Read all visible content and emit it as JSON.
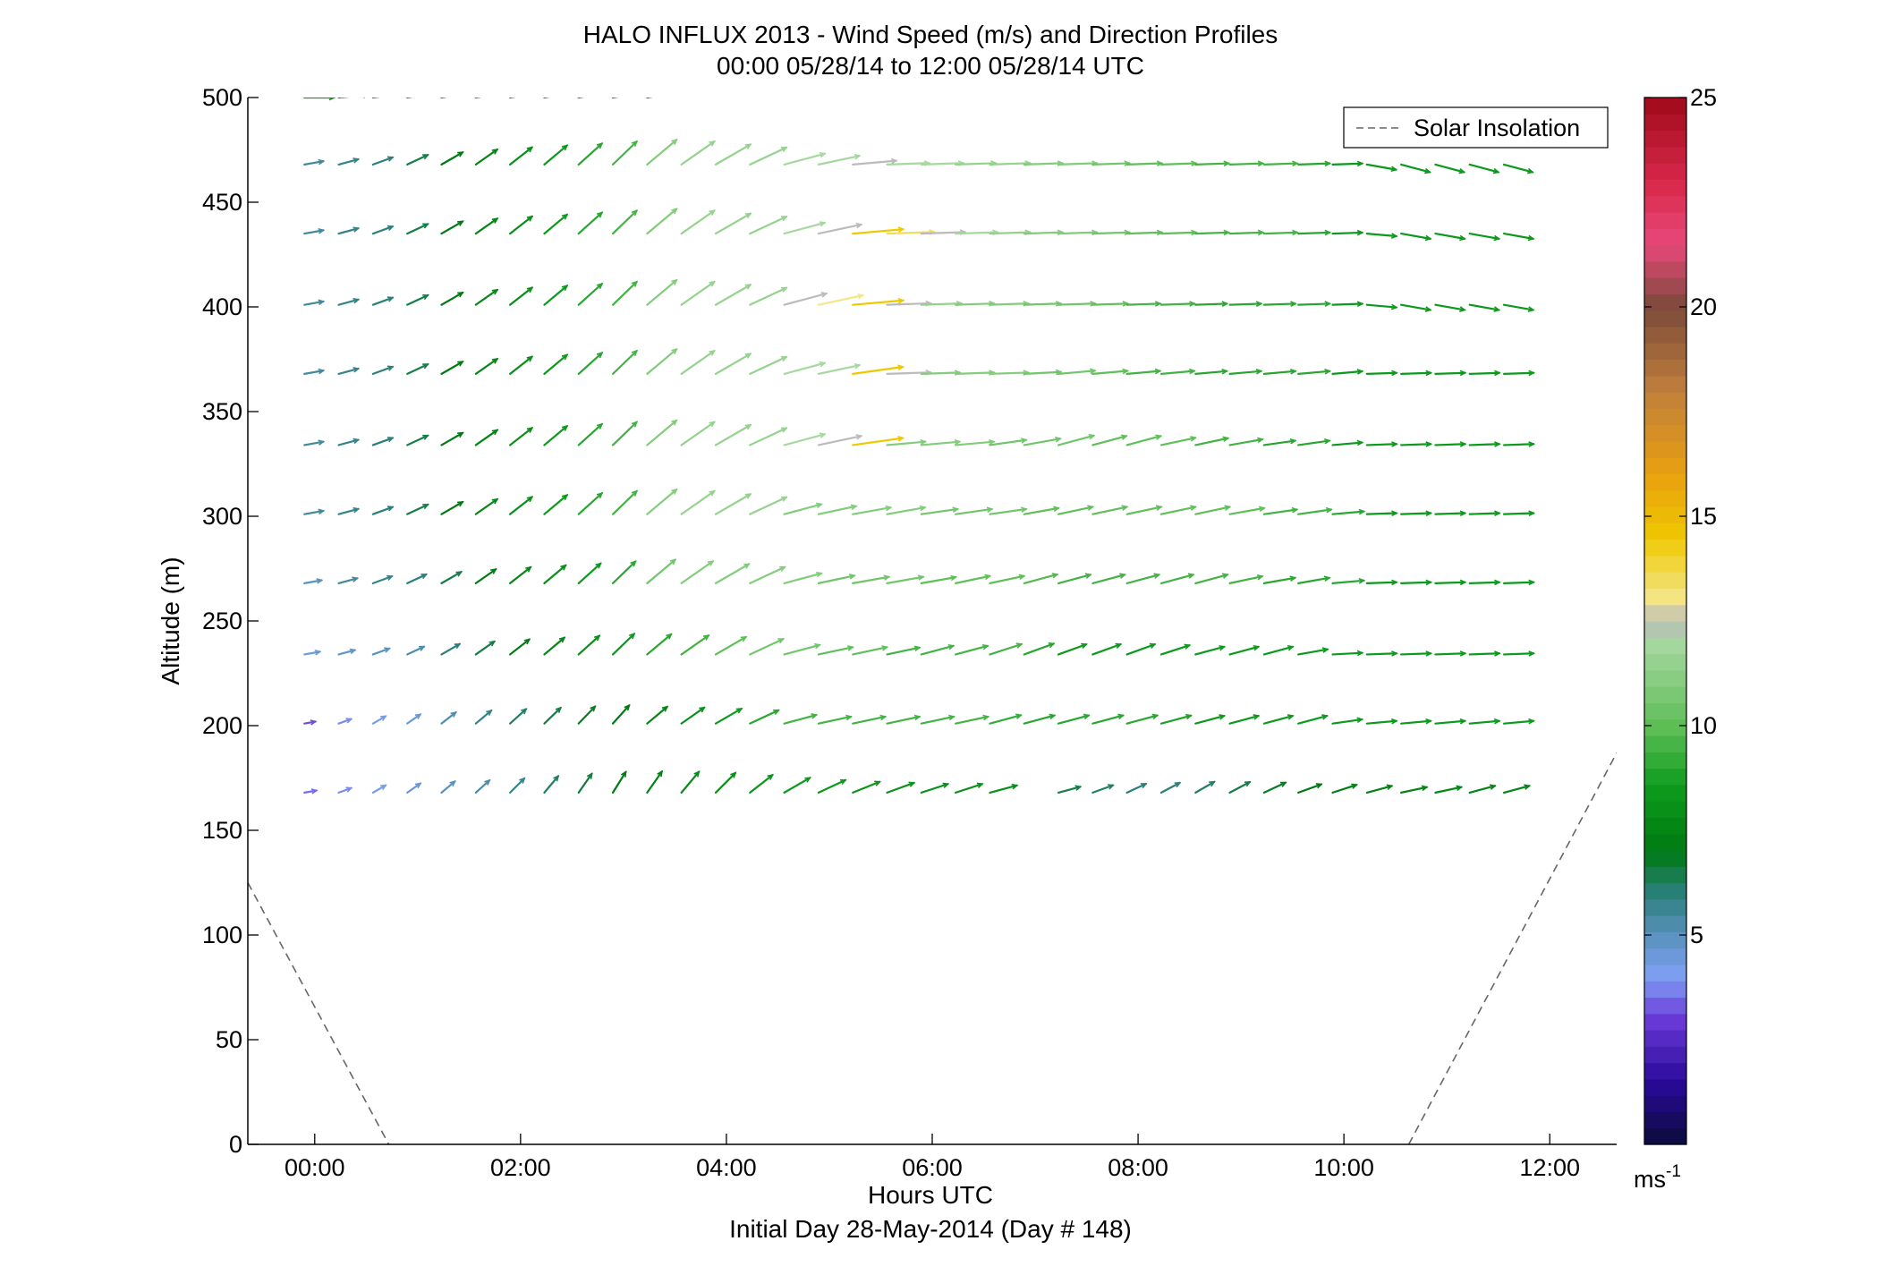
{
  "chart_data": {
    "type": "quiver",
    "title": "HALO INFLUX 2013 - Wind Speed (m/s) and Direction Profiles",
    "subtitle": "00:00 05/28/14 to 12:00 05/28/14  UTC",
    "xlabel": "Hours UTC",
    "xlabel2": "Initial Day 28-May-2014 (Day # 148)",
    "ylabel": "Altitude (m)",
    "xlim": [
      -0.65,
      12.65
    ],
    "ylim": [
      0,
      500
    ],
    "x_tick_values": [
      0,
      2,
      4,
      6,
      8,
      10,
      12
    ],
    "x_tick_labels": [
      "00:00",
      "02:00",
      "04:00",
      "06:00",
      "08:00",
      "10:00",
      "12:00"
    ],
    "y_tick_values": [
      0,
      50,
      100,
      150,
      200,
      250,
      300,
      350,
      400,
      450,
      500
    ],
    "y_tick_labels": [
      "0",
      "50",
      "100",
      "150",
      "200",
      "250",
      "300",
      "350",
      "400",
      "450",
      "500"
    ],
    "grid": false,
    "legend": {
      "position": "top-right",
      "entries": [
        {
          "label": "Solar Insolation",
          "style": "dashed",
          "color": "#666666"
        }
      ]
    },
    "colorbar": {
      "range": [
        0,
        25
      ],
      "tick_values": [
        5,
        10,
        15,
        20,
        25
      ],
      "tick_labels": [
        "5",
        "10",
        "15",
        "20",
        "25"
      ],
      "unit_base": "ms",
      "unit_exp": "-1",
      "stops": [
        {
          "v": 0,
          "c": "#0b0b3a"
        },
        {
          "v": 1.5,
          "c": "#2a0a9a"
        },
        {
          "v": 3,
          "c": "#6a3ad8"
        },
        {
          "v": 4,
          "c": "#7f9ff5"
        },
        {
          "v": 5,
          "c": "#5a92be"
        },
        {
          "v": 6,
          "c": "#2a7f7a"
        },
        {
          "v": 7,
          "c": "#007a12"
        },
        {
          "v": 8.5,
          "c": "#0c9a1c"
        },
        {
          "v": 10,
          "c": "#5fbf58"
        },
        {
          "v": 12,
          "c": "#a7d8a0"
        },
        {
          "v": 12.5,
          "c": "#bbbbbb"
        },
        {
          "v": 13,
          "c": "#f4e68a"
        },
        {
          "v": 14.5,
          "c": "#efc800"
        },
        {
          "v": 16,
          "c": "#e8a010"
        },
        {
          "v": 18,
          "c": "#c07f3c"
        },
        {
          "v": 20,
          "c": "#7b4a3a"
        },
        {
          "v": 21.5,
          "c": "#e8487a"
        },
        {
          "v": 23,
          "c": "#d8284a"
        },
        {
          "v": 25,
          "c": "#a00a1a"
        }
      ]
    },
    "solar_insolation": [
      {
        "x": [
          -0.65,
          0.72
        ],
        "y": [
          125,
          0
        ]
      },
      {
        "x": [
          10.63,
          12.65
        ],
        "y": [
          0,
          187
        ]
      }
    ],
    "altitudes": [
      168,
      201,
      234,
      268,
      301,
      334,
      368,
      401,
      435,
      468,
      500
    ],
    "times_start": -0.1,
    "times_step": 0.333,
    "times_count": 36,
    "wind_rows": [
      {
        "alt": 168,
        "s": [
          3.5,
          3.8,
          4.2,
          4.6,
          5.0,
          5.3,
          5.8,
          6.2,
          6.6,
          7.0,
          7.4,
          7.8,
          8.0,
          8.2,
          8.5,
          8.5,
          8.3,
          8.2,
          8.0,
          8.0,
          8.0,
          null,
          6.5,
          6.2,
          6.0,
          6.0,
          6.2,
          6.5,
          6.8,
          7.0,
          7.2,
          7.4,
          7.5,
          7.6,
          7.5,
          7.5
        ],
        "d": [
          10,
          20,
          30,
          35,
          40,
          42,
          45,
          50,
          55,
          58,
          55,
          50,
          45,
          38,
          30,
          25,
          22,
          20,
          18,
          18,
          15,
          null,
          15,
          20,
          25,
          28,
          30,
          28,
          25,
          20,
          18,
          15,
          12,
          12,
          15,
          15
        ]
      },
      {
        "alt": 201,
        "s": [
          3.2,
          3.8,
          4.2,
          4.6,
          5.2,
          5.8,
          6.2,
          6.5,
          6.8,
          7.0,
          7.5,
          8.0,
          8.5,
          9.0,
          9.5,
          9.5,
          9.5,
          9.5,
          9.5,
          9.5,
          9.2,
          9.0,
          9.0,
          9.0,
          9.0,
          8.8,
          8.5,
          8.5,
          8.5,
          8.5,
          8.5,
          8.5,
          8.5,
          8.5,
          8.5,
          8.5
        ],
        "d": [
          10,
          20,
          30,
          35,
          38,
          40,
          42,
          44,
          46,
          48,
          40,
          35,
          30,
          25,
          15,
          12,
          12,
          12,
          12,
          12,
          15,
          15,
          15,
          15,
          15,
          15,
          15,
          15,
          15,
          15,
          8,
          5,
          5,
          5,
          5,
          5
        ]
      },
      {
        "alt": 234,
        "s": [
          4.5,
          4.8,
          5.0,
          5.3,
          6.0,
          6.5,
          7.0,
          7.5,
          8.0,
          8.5,
          9.0,
          9.5,
          10.0,
          10.5,
          10.5,
          10.0,
          10.0,
          9.5,
          9.5,
          9.5,
          9.5,
          9.0,
          8.5,
          8.5,
          8.5,
          8.5,
          8.5,
          8.5,
          8.5,
          8.5,
          8.5,
          8.5,
          8.5,
          8.5,
          8.5,
          8.5
        ],
        "d": [
          10,
          15,
          20,
          25,
          30,
          35,
          38,
          40,
          42,
          44,
          40,
          35,
          30,
          25,
          15,
          12,
          12,
          12,
          15,
          15,
          18,
          20,
          20,
          20,
          20,
          18,
          15,
          15,
          15,
          10,
          3,
          2,
          2,
          2,
          2,
          2
        ]
      },
      {
        "alt": 268,
        "s": [
          5.0,
          5.5,
          5.8,
          6.0,
          6.5,
          7.0,
          7.5,
          8.0,
          8.5,
          9.0,
          10.5,
          11.0,
          11.0,
          11.0,
          11.0,
          10.5,
          10.5,
          10.5,
          10.0,
          10.0,
          10.0,
          9.8,
          9.5,
          9.5,
          9.5,
          9.5,
          9.5,
          9.5,
          9.0,
          9.0,
          9.0,
          8.5,
          8.5,
          8.5,
          8.5,
          8.5
        ],
        "d": [
          10,
          15,
          20,
          25,
          30,
          35,
          38,
          40,
          42,
          44,
          40,
          35,
          30,
          25,
          15,
          12,
          10,
          10,
          10,
          12,
          12,
          15,
          15,
          15,
          15,
          15,
          15,
          12,
          10,
          10,
          5,
          2,
          2,
          2,
          2,
          2
        ]
      },
      {
        "alt": 301,
        "s": [
          5.5,
          5.8,
          6.0,
          6.5,
          7.0,
          7.5,
          8.0,
          8.5,
          9.0,
          9.5,
          11.0,
          11.5,
          11.5,
          11.5,
          11.0,
          11.0,
          11.0,
          11.0,
          10.5,
          10.5,
          10.5,
          10.0,
          10.0,
          10.0,
          10.0,
          10.0,
          10.0,
          10.0,
          9.5,
          9.5,
          9.0,
          8.5,
          8.5,
          8.5,
          8.5,
          8.5
        ],
        "d": [
          10,
          15,
          20,
          25,
          30,
          35,
          38,
          40,
          42,
          44,
          40,
          35,
          30,
          25,
          15,
          12,
          10,
          10,
          8,
          8,
          8,
          10,
          12,
          12,
          12,
          12,
          12,
          10,
          8,
          8,
          5,
          2,
          2,
          2,
          2,
          2
        ]
      },
      {
        "alt": 334,
        "s": [
          5.5,
          5.8,
          6.0,
          6.5,
          7.0,
          7.5,
          8.0,
          8.5,
          9.0,
          9.5,
          11.0,
          11.5,
          11.5,
          11.5,
          12.0,
          12.5,
          14.5,
          11.0,
          11.0,
          11.0,
          10.5,
          10.5,
          10.5,
          10.0,
          10.0,
          10.0,
          9.5,
          9.5,
          9.0,
          9.0,
          8.5,
          8.5,
          8.5,
          8.5,
          8.5,
          8.5
        ],
        "d": [
          10,
          15,
          20,
          25,
          30,
          35,
          38,
          40,
          42,
          44,
          40,
          35,
          30,
          25,
          15,
          12,
          8,
          5,
          5,
          5,
          8,
          10,
          15,
          15,
          15,
          12,
          12,
          10,
          8,
          8,
          5,
          2,
          2,
          2,
          2,
          2
        ]
      },
      {
        "alt": 368,
        "s": [
          5.5,
          5.8,
          6.0,
          6.5,
          7.0,
          7.5,
          8.0,
          8.5,
          9.0,
          9.5,
          11.0,
          11.5,
          11.5,
          11.5,
          12.0,
          12.0,
          14.5,
          12.5,
          11.0,
          11.0,
          11.0,
          10.5,
          10.5,
          10.0,
          9.5,
          9.5,
          9.0,
          9.0,
          9.0,
          9.0,
          8.5,
          8.5,
          8.5,
          8.5,
          8.5,
          8.5
        ],
        "d": [
          10,
          15,
          20,
          25,
          30,
          35,
          38,
          40,
          42,
          44,
          40,
          35,
          30,
          25,
          15,
          12,
          8,
          2,
          2,
          2,
          2,
          3,
          5,
          5,
          5,
          5,
          5,
          5,
          5,
          5,
          5,
          2,
          2,
          2,
          2,
          2
        ]
      },
      {
        "alt": 401,
        "s": [
          5.5,
          5.8,
          6.0,
          6.5,
          7.0,
          7.5,
          8.0,
          8.5,
          9.0,
          9.5,
          11.0,
          11.5,
          11.5,
          11.5,
          12.5,
          13.0,
          14.5,
          12.5,
          11.5,
          11.0,
          11.0,
          10.5,
          10.5,
          10.0,
          9.5,
          9.5,
          9.0,
          9.0,
          9.0,
          9.0,
          8.5,
          8.5,
          8.5,
          8.5,
          8.5,
          8.5
        ],
        "d": [
          10,
          15,
          20,
          25,
          30,
          35,
          38,
          40,
          42,
          44,
          40,
          35,
          30,
          25,
          15,
          12,
          5,
          2,
          2,
          2,
          2,
          2,
          2,
          2,
          2,
          2,
          2,
          2,
          2,
          2,
          2,
          -5,
          -10,
          -10,
          -10,
          -10
        ]
      },
      {
        "alt": 435,
        "s": [
          5.5,
          5.8,
          6.0,
          6.5,
          7.0,
          7.5,
          8.0,
          8.5,
          9.0,
          9.5,
          11.0,
          11.5,
          11.5,
          11.5,
          12.0,
          12.5,
          14.5,
          13.5,
          12.5,
          12.0,
          11.5,
          11.0,
          11.0,
          10.5,
          10.0,
          10.0,
          9.5,
          9.5,
          9.5,
          9.0,
          8.5,
          8.5,
          8.5,
          8.5,
          8.5,
          8.5
        ],
        "d": [
          10,
          15,
          20,
          25,
          30,
          35,
          38,
          40,
          42,
          44,
          40,
          35,
          30,
          25,
          15,
          12,
          5,
          2,
          2,
          2,
          2,
          2,
          2,
          2,
          2,
          2,
          2,
          2,
          2,
          2,
          2,
          -5,
          -10,
          -10,
          -10,
          -10
        ]
      },
      {
        "alt": 468,
        "s": [
          5.5,
          5.8,
          6.0,
          6.5,
          7.0,
          7.5,
          8.0,
          8.5,
          9.0,
          9.5,
          11.0,
          11.5,
          11.5,
          11.5,
          12.0,
          12.0,
          12.5,
          12.0,
          12.0,
          11.5,
          11.5,
          11.0,
          11.0,
          10.5,
          10.0,
          10.0,
          9.5,
          9.5,
          9.5,
          9.0,
          8.5,
          8.5,
          8.5,
          8.5,
          8.5,
          8.5
        ],
        "d": [
          10,
          15,
          20,
          25,
          30,
          35,
          38,
          40,
          42,
          44,
          40,
          35,
          30,
          25,
          15,
          12,
          5,
          2,
          2,
          2,
          2,
          2,
          2,
          2,
          2,
          2,
          2,
          2,
          2,
          2,
          2,
          -10,
          -15,
          -15,
          -15,
          -15
        ]
      },
      {
        "alt": 500,
        "s": [
          8.5,
          8.5,
          8.5,
          8.5,
          8.5,
          8.5,
          8.5,
          8.5,
          8.5,
          8.5,
          8.5,
          null,
          null,
          null,
          null,
          null,
          null,
          null,
          null,
          null,
          null,
          null,
          null,
          null,
          null,
          null,
          null,
          null,
          null,
          null,
          null,
          null,
          null,
          null,
          null,
          null
        ],
        "d": [
          0,
          5,
          8,
          10,
          10,
          10,
          10,
          10,
          10,
          10,
          10,
          null,
          null,
          null,
          null,
          null,
          null,
          null,
          null,
          null,
          null,
          null,
          null,
          null,
          null,
          null,
          null,
          null,
          null,
          null,
          null,
          null,
          null,
          null,
          null,
          null
        ]
      }
    ]
  }
}
